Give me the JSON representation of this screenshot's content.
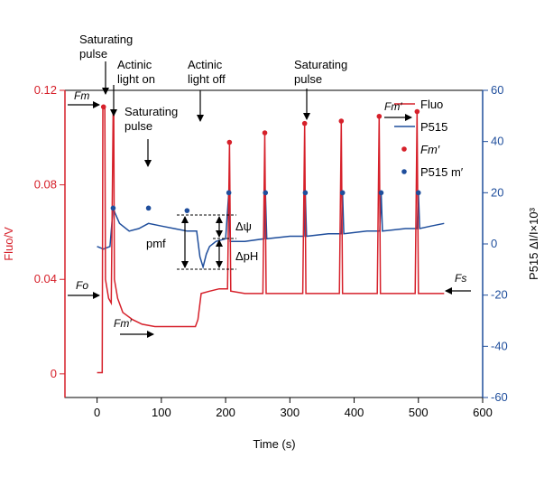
{
  "chart_data": {
    "type": "line",
    "xlabel": "Time (s)",
    "ylabel_left": "Fluo/V",
    "ylabel_right": "P515 ΔI/I×10³",
    "xlim": [
      -50,
      600
    ],
    "ylim_left": [
      -0.01,
      0.12
    ],
    "ylim_right": [
      -60,
      60
    ],
    "x_ticks": [
      0,
      100,
      200,
      300,
      400,
      500,
      600
    ],
    "y_left_ticks": [
      0,
      0.04,
      0.08,
      0.12
    ],
    "y_left_tick_labels": [
      "0",
      "0.04",
      "0.08",
      "0.12"
    ],
    "y_right_ticks": [
      -60,
      -40,
      -20,
      0,
      20,
      40,
      60
    ],
    "colors": {
      "fluo": "#d6202a",
      "p515": "#1f4e9c"
    },
    "legend": {
      "placement": "top-right",
      "entries": [
        {
          "label": "Fluo",
          "style": "line",
          "color": "#d6202a"
        },
        {
          "label": "P515",
          "style": "line",
          "color": "#1f4e9c"
        },
        {
          "label": "Fm′",
          "style": "dot",
          "color": "#d6202a"
        },
        {
          "label": "P515 m′",
          "style": "dot",
          "color": "#1f4e9c"
        }
      ]
    },
    "series": [
      {
        "name": "Fluo",
        "axis": "left",
        "points": [
          [
            0,
            0.0005
          ],
          [
            8,
            0.0005
          ],
          [
            9,
            0.113
          ],
          [
            12,
            0.113
          ],
          [
            13,
            0.04
          ],
          [
            18,
            0.032
          ],
          [
            22,
            0.03
          ],
          [
            25,
            0.11
          ],
          [
            26,
            0.11
          ],
          [
            27,
            0.04
          ],
          [
            32,
            0.032
          ],
          [
            40,
            0.026
          ],
          [
            55,
            0.023
          ],
          [
            70,
            0.021
          ],
          [
            90,
            0.02
          ],
          [
            110,
            0.02
          ],
          [
            130,
            0.02
          ],
          [
            153,
            0.02
          ],
          [
            157,
            0.023
          ],
          [
            162,
            0.034
          ],
          [
            175,
            0.035
          ],
          [
            190,
            0.036
          ],
          [
            203,
            0.036
          ],
          [
            206,
            0.098
          ],
          [
            208,
            0.035
          ],
          [
            230,
            0.034
          ],
          [
            258,
            0.034
          ],
          [
            261,
            0.102
          ],
          [
            263,
            0.034
          ],
          [
            290,
            0.034
          ],
          [
            320,
            0.034
          ],
          [
            323,
            0.106
          ],
          [
            325,
            0.034
          ],
          [
            350,
            0.034
          ],
          [
            377,
            0.034
          ],
          [
            380,
            0.107
          ],
          [
            382,
            0.034
          ],
          [
            410,
            0.034
          ],
          [
            436,
            0.034
          ],
          [
            439,
            0.109
          ],
          [
            441,
            0.034
          ],
          [
            470,
            0.034
          ],
          [
            495,
            0.034
          ],
          [
            498,
            0.111
          ],
          [
            500,
            0.034
          ],
          [
            520,
            0.034
          ],
          [
            540,
            0.034
          ]
        ]
      },
      {
        "name": "P515",
        "axis": "right",
        "points": [
          [
            0,
            -1
          ],
          [
            10,
            -2
          ],
          [
            20,
            -1
          ],
          [
            25,
            14
          ],
          [
            28,
            12
          ],
          [
            35,
            8
          ],
          [
            50,
            5
          ],
          [
            65,
            6
          ],
          [
            80,
            8
          ],
          [
            100,
            7
          ],
          [
            120,
            6
          ],
          [
            140,
            5
          ],
          [
            155,
            5
          ],
          [
            160,
            -5
          ],
          [
            165,
            -9
          ],
          [
            170,
            -4
          ],
          [
            175,
            -1
          ],
          [
            185,
            1
          ],
          [
            200,
            2
          ],
          [
            205,
            20
          ],
          [
            207,
            1
          ],
          [
            230,
            1
          ],
          [
            260,
            2
          ],
          [
            262,
            20
          ],
          [
            264,
            2
          ],
          [
            300,
            3
          ],
          [
            322,
            3
          ],
          [
            324,
            20
          ],
          [
            326,
            3
          ],
          [
            360,
            4
          ],
          [
            380,
            4
          ],
          [
            382,
            20
          ],
          [
            384,
            4
          ],
          [
            420,
            5
          ],
          [
            440,
            5
          ],
          [
            442,
            20
          ],
          [
            444,
            5
          ],
          [
            480,
            6
          ],
          [
            498,
            6
          ],
          [
            500,
            20
          ],
          [
            502,
            6
          ],
          [
            520,
            7
          ],
          [
            540,
            8
          ]
        ]
      }
    ],
    "fm_prime_points": [
      [
        10,
        0.113
      ],
      [
        206,
        0.098
      ],
      [
        261,
        0.102
      ],
      [
        323,
        0.106
      ],
      [
        380,
        0.107
      ],
      [
        439,
        0.109
      ],
      [
        498,
        0.111
      ]
    ],
    "p515_m_prime_points": [
      [
        25,
        14
      ],
      [
        80,
        14
      ],
      [
        140,
        13
      ],
      [
        205,
        20
      ],
      [
        262,
        20
      ],
      [
        324,
        20
      ],
      [
        382,
        20
      ],
      [
        442,
        20
      ],
      [
        500,
        20
      ]
    ],
    "annotations": {
      "saturating_pulse_1": [
        "Saturating",
        "pulse"
      ],
      "actinic_light_on": [
        "Actinic",
        "light on"
      ],
      "saturating_pulse_2": [
        "Saturating",
        "pulse"
      ],
      "actinic_light_off": [
        "Actinic",
        "light off"
      ],
      "saturating_pulse_3": [
        "Saturating",
        "pulse"
      ],
      "fm": "Fm",
      "fo": "Fo",
      "fm_prime_low": "Fm′",
      "fm_prime_high": "Fm′",
      "fs": "Fs",
      "pmf": "pmf",
      "delta_psi": "Δψ",
      "delta_ph": "ΔpH"
    }
  }
}
